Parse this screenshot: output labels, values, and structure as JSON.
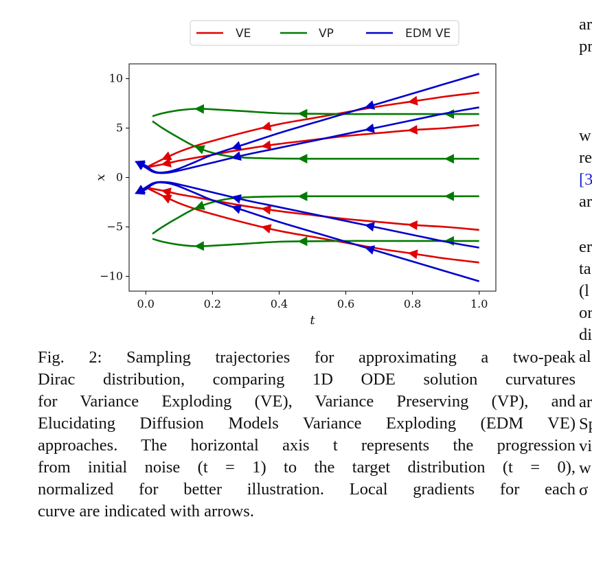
{
  "figure": {
    "chart_data": {
      "type": "line",
      "xlabel": "t",
      "ylabel": "x",
      "xlim": [
        -0.05,
        1.05
      ],
      "ylim": [
        -11.5,
        11.5
      ],
      "xticks": [
        0.0,
        0.2,
        0.4,
        0.6,
        0.8,
        1.0
      ],
      "xtick_labels": [
        "0.0",
        "0.2",
        "0.4",
        "0.6",
        "0.8",
        "1.0"
      ],
      "yticks": [
        10,
        5,
        0,
        -5,
        -10
      ],
      "ytick_labels": [
        "10",
        "5",
        "0",
        "−5",
        "−10"
      ],
      "grid": false,
      "legend_position": "top-center",
      "legend": [
        {
          "label": "VE",
          "color": "#e00000"
        },
        {
          "label": "VP",
          "color": "#007a00"
        },
        {
          "label": "EDM VE",
          "color": "#0000cc"
        }
      ],
      "series": [
        {
          "name": "VE",
          "color": "#e00000",
          "x": [
            0.0,
            0.03,
            0.06,
            0.1,
            0.15,
            0.2,
            0.3,
            0.4,
            0.5,
            0.6,
            0.7,
            0.8,
            0.9,
            1.0
          ],
          "y": [
            1.0,
            1.5,
            2.0,
            2.6,
            3.2,
            3.7,
            4.6,
            5.4,
            6.0,
            6.6,
            7.2,
            7.7,
            8.2,
            8.6
          ],
          "arrows_at": [
            0.06,
            0.36,
            0.8
          ]
        },
        {
          "name": "VE",
          "color": "#e00000",
          "x": [
            0.0,
            0.03,
            0.06,
            0.1,
            0.15,
            0.2,
            0.3,
            0.4,
            0.5,
            0.6,
            0.7,
            0.8,
            0.9,
            1.0
          ],
          "y": [
            1.0,
            1.2,
            1.4,
            1.7,
            2.0,
            2.3,
            2.9,
            3.4,
            3.8,
            4.2,
            4.5,
            4.8,
            5.0,
            5.3
          ],
          "arrows_at": [
            0.06,
            0.36,
            0.8
          ]
        },
        {
          "name": "VE",
          "color": "#e00000",
          "x": [
            0.0,
            0.03,
            0.06,
            0.1,
            0.15,
            0.2,
            0.3,
            0.4,
            0.5,
            0.6,
            0.7,
            0.8,
            0.9,
            1.0
          ],
          "y": [
            -1.0,
            -1.2,
            -1.4,
            -1.7,
            -2.0,
            -2.3,
            -2.9,
            -3.4,
            -3.8,
            -4.2,
            -4.5,
            -4.8,
            -5.0,
            -5.3
          ],
          "arrows_at": [
            0.06,
            0.36,
            0.8
          ]
        },
        {
          "name": "VE",
          "color": "#e00000",
          "x": [
            0.0,
            0.03,
            0.06,
            0.1,
            0.15,
            0.2,
            0.3,
            0.4,
            0.5,
            0.6,
            0.7,
            0.8,
            0.9,
            1.0
          ],
          "y": [
            -1.0,
            -1.5,
            -2.0,
            -2.6,
            -3.2,
            -3.7,
            -4.6,
            -5.4,
            -6.0,
            -6.6,
            -7.2,
            -7.7,
            -8.2,
            -8.6
          ],
          "arrows_at": [
            0.06,
            0.36,
            0.8
          ]
        },
        {
          "name": "VP",
          "color": "#007a00",
          "x": [
            0.02,
            0.05,
            0.1,
            0.15,
            0.2,
            0.25,
            0.3,
            0.4,
            0.5,
            0.6,
            0.7,
            0.8,
            0.9,
            1.0
          ],
          "y": [
            6.2,
            6.5,
            6.8,
            6.95,
            6.9,
            6.8,
            6.7,
            6.5,
            6.45,
            6.42,
            6.42,
            6.42,
            6.42,
            6.42
          ],
          "arrows_at": [
            0.16,
            0.47,
            0.91
          ]
        },
        {
          "name": "VP",
          "color": "#007a00",
          "x": [
            0.02,
            0.05,
            0.1,
            0.15,
            0.2,
            0.25,
            0.3,
            0.4,
            0.5,
            0.6,
            0.7,
            0.8,
            0.9,
            1.0
          ],
          "y": [
            5.7,
            5.0,
            4.0,
            3.1,
            2.5,
            2.15,
            2.0,
            1.92,
            1.9,
            1.9,
            1.9,
            1.9,
            1.9,
            1.9
          ],
          "arrows_at": [
            0.16,
            0.47,
            0.91
          ]
        },
        {
          "name": "VP",
          "color": "#007a00",
          "x": [
            0.02,
            0.05,
            0.1,
            0.15,
            0.2,
            0.25,
            0.3,
            0.4,
            0.5,
            0.6,
            0.7,
            0.8,
            0.9,
            1.0
          ],
          "y": [
            -5.7,
            -5.0,
            -4.0,
            -3.1,
            -2.5,
            -2.15,
            -2.0,
            -1.92,
            -1.9,
            -1.9,
            -1.9,
            -1.9,
            -1.9,
            -1.9
          ],
          "arrows_at": [
            0.16,
            0.47,
            0.91
          ]
        },
        {
          "name": "VP",
          "color": "#007a00",
          "x": [
            0.02,
            0.05,
            0.1,
            0.15,
            0.2,
            0.25,
            0.3,
            0.4,
            0.5,
            0.6,
            0.7,
            0.8,
            0.9,
            1.0
          ],
          "y": [
            -6.2,
            -6.5,
            -6.8,
            -6.95,
            -6.9,
            -6.8,
            -6.7,
            -6.5,
            -6.45,
            -6.42,
            -6.42,
            -6.42,
            -6.42,
            -6.42
          ],
          "arrows_at": [
            0.16,
            0.47,
            0.91
          ]
        },
        {
          "name": "EDM VE",
          "color": "#0000cc",
          "x": [
            -0.03,
            0.0,
            0.02,
            0.04,
            0.07,
            0.1,
            0.15,
            0.2,
            0.3,
            0.4,
            0.5,
            0.6,
            0.7,
            0.8,
            0.9,
            1.0
          ],
          "y": [
            1.6,
            1.2,
            0.7,
            0.5,
            0.6,
            0.9,
            1.6,
            2.3,
            3.4,
            4.5,
            5.5,
            6.5,
            7.5,
            8.5,
            9.5,
            10.5
          ],
          "arrows_at": [
            -0.02,
            0.27,
            0.67
          ]
        },
        {
          "name": "EDM VE",
          "color": "#0000cc",
          "x": [
            -0.03,
            0.0,
            0.02,
            0.04,
            0.07,
            0.1,
            0.15,
            0.2,
            0.3,
            0.4,
            0.5,
            0.6,
            0.7,
            0.8,
            0.9,
            1.0
          ],
          "y": [
            1.6,
            1.0,
            0.6,
            0.45,
            0.5,
            0.7,
            1.1,
            1.5,
            2.3,
            3.0,
            3.7,
            4.4,
            5.1,
            5.8,
            6.5,
            7.1
          ],
          "arrows_at": [
            -0.02,
            0.27,
            0.67
          ]
        },
        {
          "name": "EDM VE",
          "color": "#0000cc",
          "x": [
            -0.03,
            0.0,
            0.02,
            0.04,
            0.07,
            0.1,
            0.15,
            0.2,
            0.3,
            0.4,
            0.5,
            0.6,
            0.7,
            0.8,
            0.9,
            1.0
          ],
          "y": [
            -1.6,
            -1.0,
            -0.6,
            -0.45,
            -0.5,
            -0.7,
            -1.1,
            -1.5,
            -2.3,
            -3.0,
            -3.7,
            -4.4,
            -5.1,
            -5.8,
            -6.5,
            -7.1
          ],
          "arrows_at": [
            -0.02,
            0.27,
            0.67
          ]
        },
        {
          "name": "EDM VE",
          "color": "#0000cc",
          "x": [
            -0.03,
            0.0,
            0.02,
            0.04,
            0.07,
            0.1,
            0.15,
            0.2,
            0.3,
            0.4,
            0.5,
            0.6,
            0.7,
            0.8,
            0.9,
            1.0
          ],
          "y": [
            -1.6,
            -1.2,
            -0.7,
            -0.5,
            -0.6,
            -0.9,
            -1.6,
            -2.3,
            -3.4,
            -4.5,
            -5.5,
            -6.5,
            -7.5,
            -8.5,
            -9.5,
            -10.5
          ],
          "arrows_at": [
            -0.02,
            0.27,
            0.67
          ]
        }
      ]
    }
  },
  "caption": {
    "lines": [
      "Fig. 2: Sampling trajectories for approximating a two-peak",
      "Dirac distribution, comparing 1D ODE solution curvatures",
      "for Variance Exploding (VE), Variance Preserving (VP), and",
      "Elucidating Diffusion Models Variance Exploding (EDM VE)",
      "approaches. The horizontal axis t represents the progression",
      "from initial noise (t = 1) to the target distribution (t = 0),",
      "normalized for better illustration. Local gradients for each",
      "curve are indicated with arrows."
    ]
  },
  "right_column": {
    "fragments": [
      "ar",
      "pr",
      "w",
      "re",
      "[3",
      "ar",
      "er",
      "ta",
      "(l",
      "or",
      "di",
      "al",
      "ar",
      "Sp",
      "vi",
      "w",
      "σ"
    ]
  }
}
